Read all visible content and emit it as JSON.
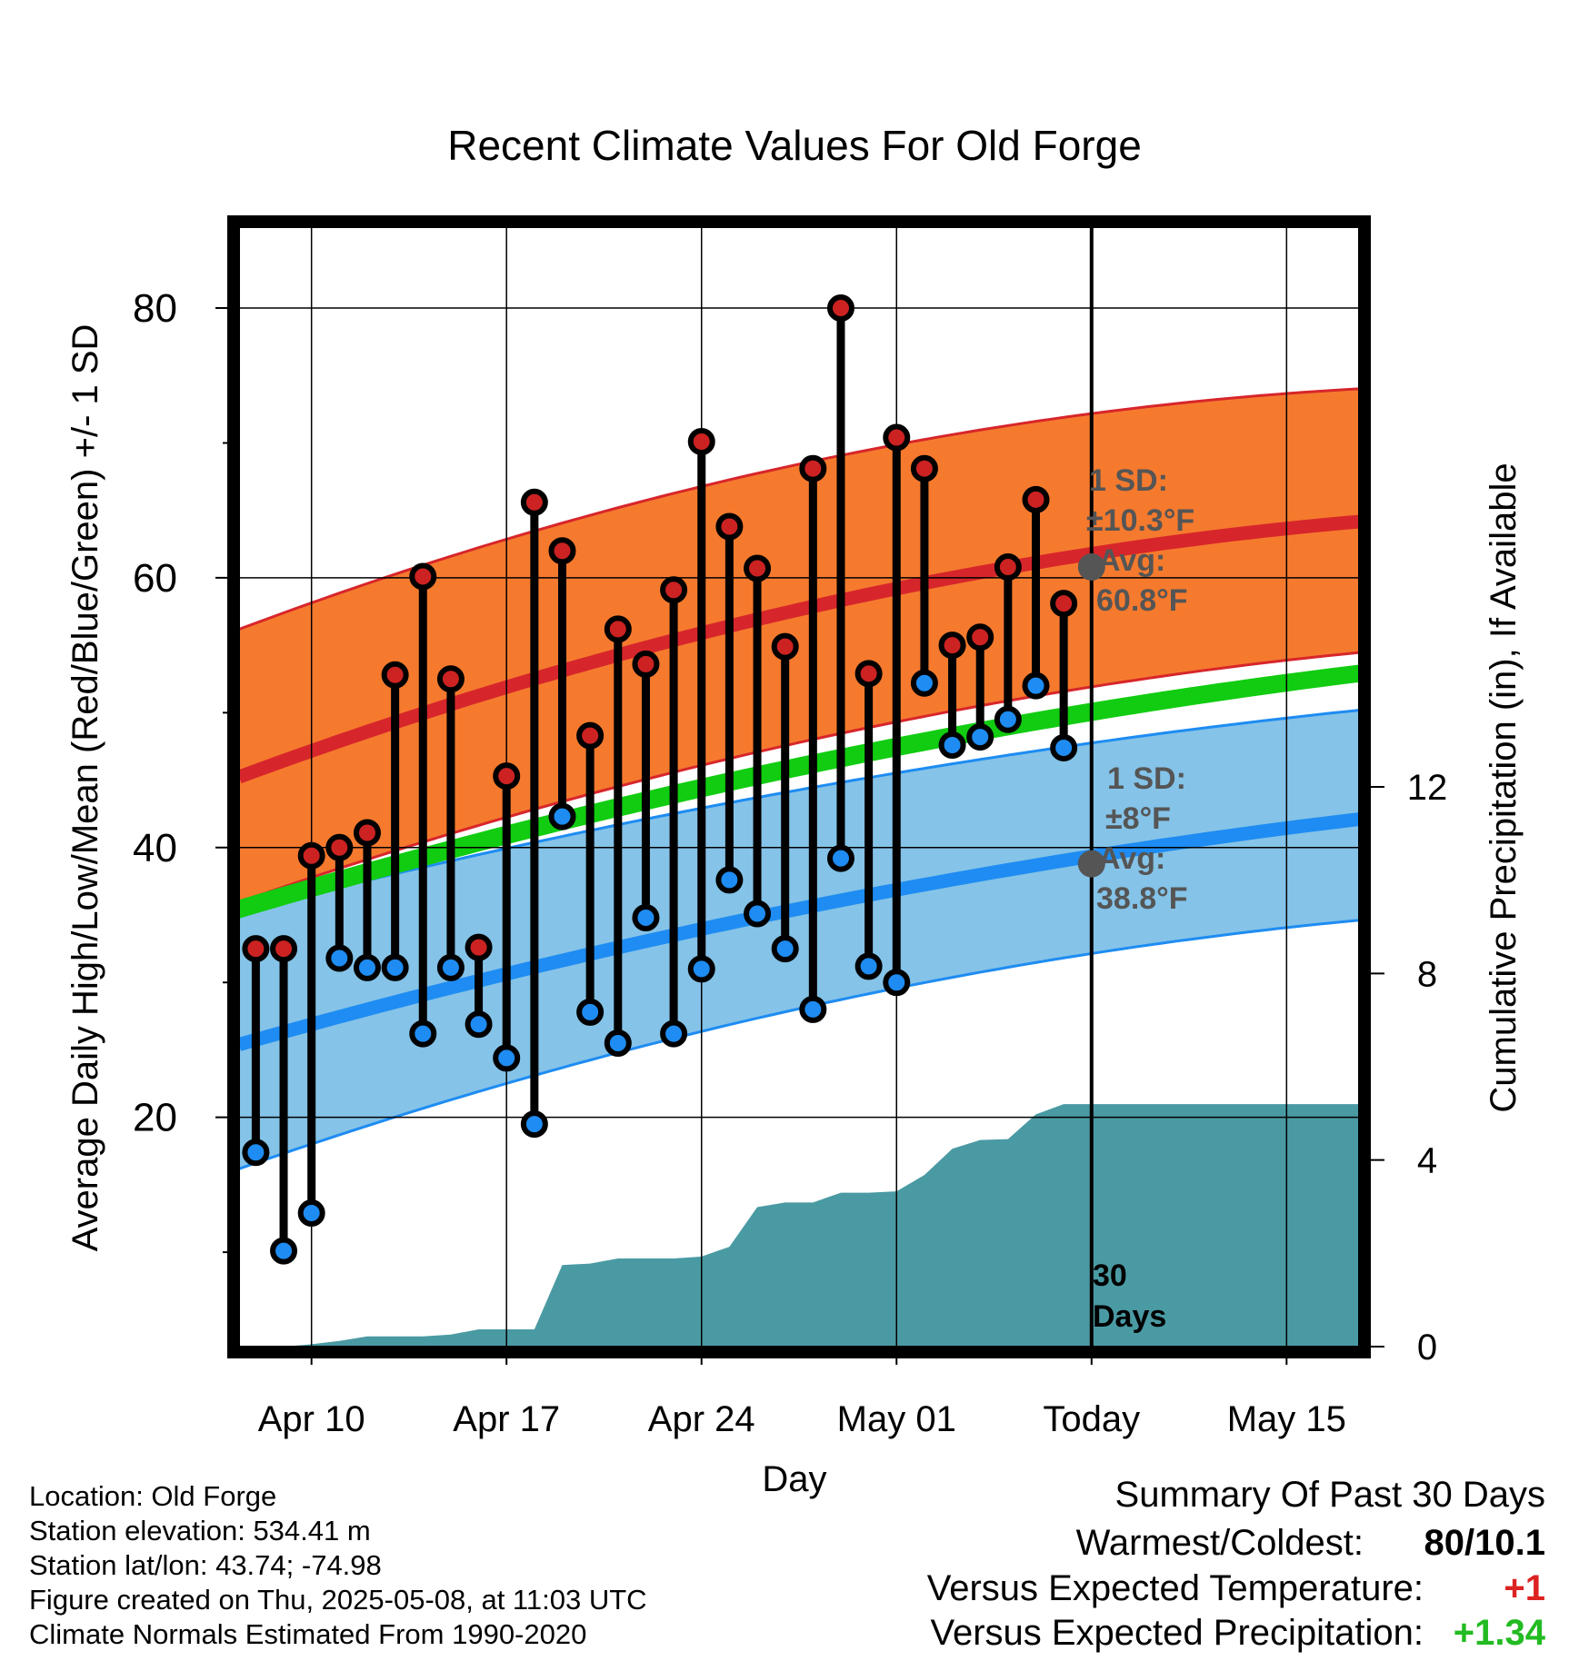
{
  "chart_data": {
    "type": "line",
    "title": "Recent Climate Values For Old Forge",
    "xlabel": "Day",
    "ylabel": "Average Daily High/Low/Mean (Red/Blue/Green) +/- 1 SD",
    "ylabel_right": "Cumulative Precipitation (in), If Available",
    "ylim": [
      3,
      86
    ],
    "ylim_right": [
      0,
      24
    ],
    "x_ticks": [
      {
        "day": 1,
        "label": "Apr 10"
      },
      {
        "day": 8,
        "label": "Apr 17"
      },
      {
        "day": 15,
        "label": "Apr 24"
      },
      {
        "day": 22,
        "label": "May 01"
      },
      {
        "day": 29,
        "label": "Today"
      },
      {
        "day": 36,
        "label": "May 15"
      }
    ],
    "y_ticks_left": [
      20,
      40,
      60,
      80
    ],
    "y_ticks_right": [
      0,
      4,
      8,
      12
    ],
    "grid": true,
    "x_range": [
      -1.6,
      38.6
    ],
    "today": 29,
    "window_label": "30\nDays",
    "normals": {
      "high_mean": [
        45.2,
        53.8,
        60.3,
        64.2
      ],
      "high_upper": [
        56.2,
        64.6,
        71.0,
        74.0
      ],
      "high_lower": [
        35.8,
        44.4,
        50.1,
        54.6
      ],
      "low_mean": [
        25.4,
        32.1,
        38.0,
        42.1
      ],
      "low_upper": [
        35.2,
        41.3,
        46.5,
        50.2
      ],
      "low_lower": [
        16.2,
        24.2,
        30.8,
        34.6
      ],
      "mean_upper": [
        36.2,
        43.0,
        49.5,
        53.5
      ],
      "mean_lower": [
        34.8,
        41.6,
        48.1,
        52.2
      ],
      "x": [
        -1.6,
        11,
        25,
        38.6
      ]
    },
    "observations": {
      "day": [
        -1,
        0,
        1,
        2,
        3,
        4,
        5,
        6,
        7,
        8,
        9,
        10,
        11,
        12,
        13,
        14,
        15,
        16,
        17,
        18,
        19,
        20,
        21,
        22,
        23,
        24,
        25,
        26,
        27,
        28
      ],
      "high": [
        32.5,
        32.5,
        39.4,
        40.0,
        41.1,
        52.8,
        60.1,
        52.5,
        32.6,
        45.3,
        65.6,
        62.0,
        48.3,
        56.2,
        53.6,
        59.1,
        70.1,
        63.8,
        60.7,
        54.9,
        68.1,
        80.0,
        52.9,
        70.4,
        68.1,
        55.0,
        55.6,
        60.8,
        65.8,
        58.1
      ],
      "low": [
        17.4,
        10.1,
        12.9,
        31.8,
        31.1,
        31.1,
        26.2,
        31.1,
        26.9,
        24.4,
        19.5,
        42.3,
        27.8,
        25.5,
        34.8,
        26.2,
        31.0,
        37.6,
        35.1,
        32.5,
        28.0,
        39.2,
        31.2,
        30.0,
        52.2,
        47.6,
        48.2,
        49.5,
        52.0,
        47.4
      ]
    },
    "precipitation": {
      "day": [
        -1,
        0,
        1,
        2,
        3,
        4,
        5,
        6,
        7,
        8,
        9,
        10,
        11,
        12,
        13,
        14,
        15,
        16,
        17,
        18,
        19,
        20,
        21,
        22,
        23,
        24,
        25,
        26,
        27,
        28,
        29,
        38.6
      ],
      "cumulative": [
        0.0,
        0.0,
        0.05,
        0.12,
        0.22,
        0.22,
        0.22,
        0.26,
        0.37,
        0.37,
        0.37,
        1.75,
        1.78,
        1.89,
        1.89,
        1.89,
        1.93,
        2.14,
        2.99,
        3.09,
        3.09,
        3.3,
        3.3,
        3.33,
        3.68,
        4.24,
        4.43,
        4.45,
        4.98,
        5.2,
        5.2,
        5.2
      ]
    },
    "annotations": {
      "high_sd": "1 SD:",
      "high_sd_value": "±10.3°F",
      "high_avg": "Avg:",
      "high_avg_value": "60.8°F",
      "high_avg_point": 60.8,
      "low_sd": "1 SD:",
      "low_sd_value": "±8°F",
      "low_avg": "Avg:",
      "low_avg_value": "38.8°F",
      "low_avg_point": 38.8
    },
    "colors": {
      "high_band": "#f57a2e",
      "high_line": "#d7262b",
      "low_band": "#85c3e8",
      "low_line": "#1e8cf2",
      "mean_band": "#11cc11",
      "precip": "#4a9aa3",
      "high_point": "#cc2222",
      "low_point": "#1e8cf2",
      "annotation": "#555555"
    }
  },
  "info": {
    "location": "Location: Old Forge",
    "elevation": "Station elevation: 534.41 m",
    "latlon": "Station lat/lon: 43.74; -74.98",
    "created": "Figure created on Thu, 2025-05-08, at 11:03 UTC",
    "normals": "Climate Normals Estimated From 1990-2020"
  },
  "summary": {
    "title": "Summary Of Past 30 Days",
    "warmest_label": "Warmest/Coldest:",
    "warmest_value": "80/10.1",
    "temp_label": "Versus Expected Temperature:",
    "temp_value": "+1",
    "temp_color": "#dd2222",
    "precip_label": "Versus Expected Precipitation:",
    "precip_value": "+1.34",
    "precip_color": "#22bb22"
  }
}
